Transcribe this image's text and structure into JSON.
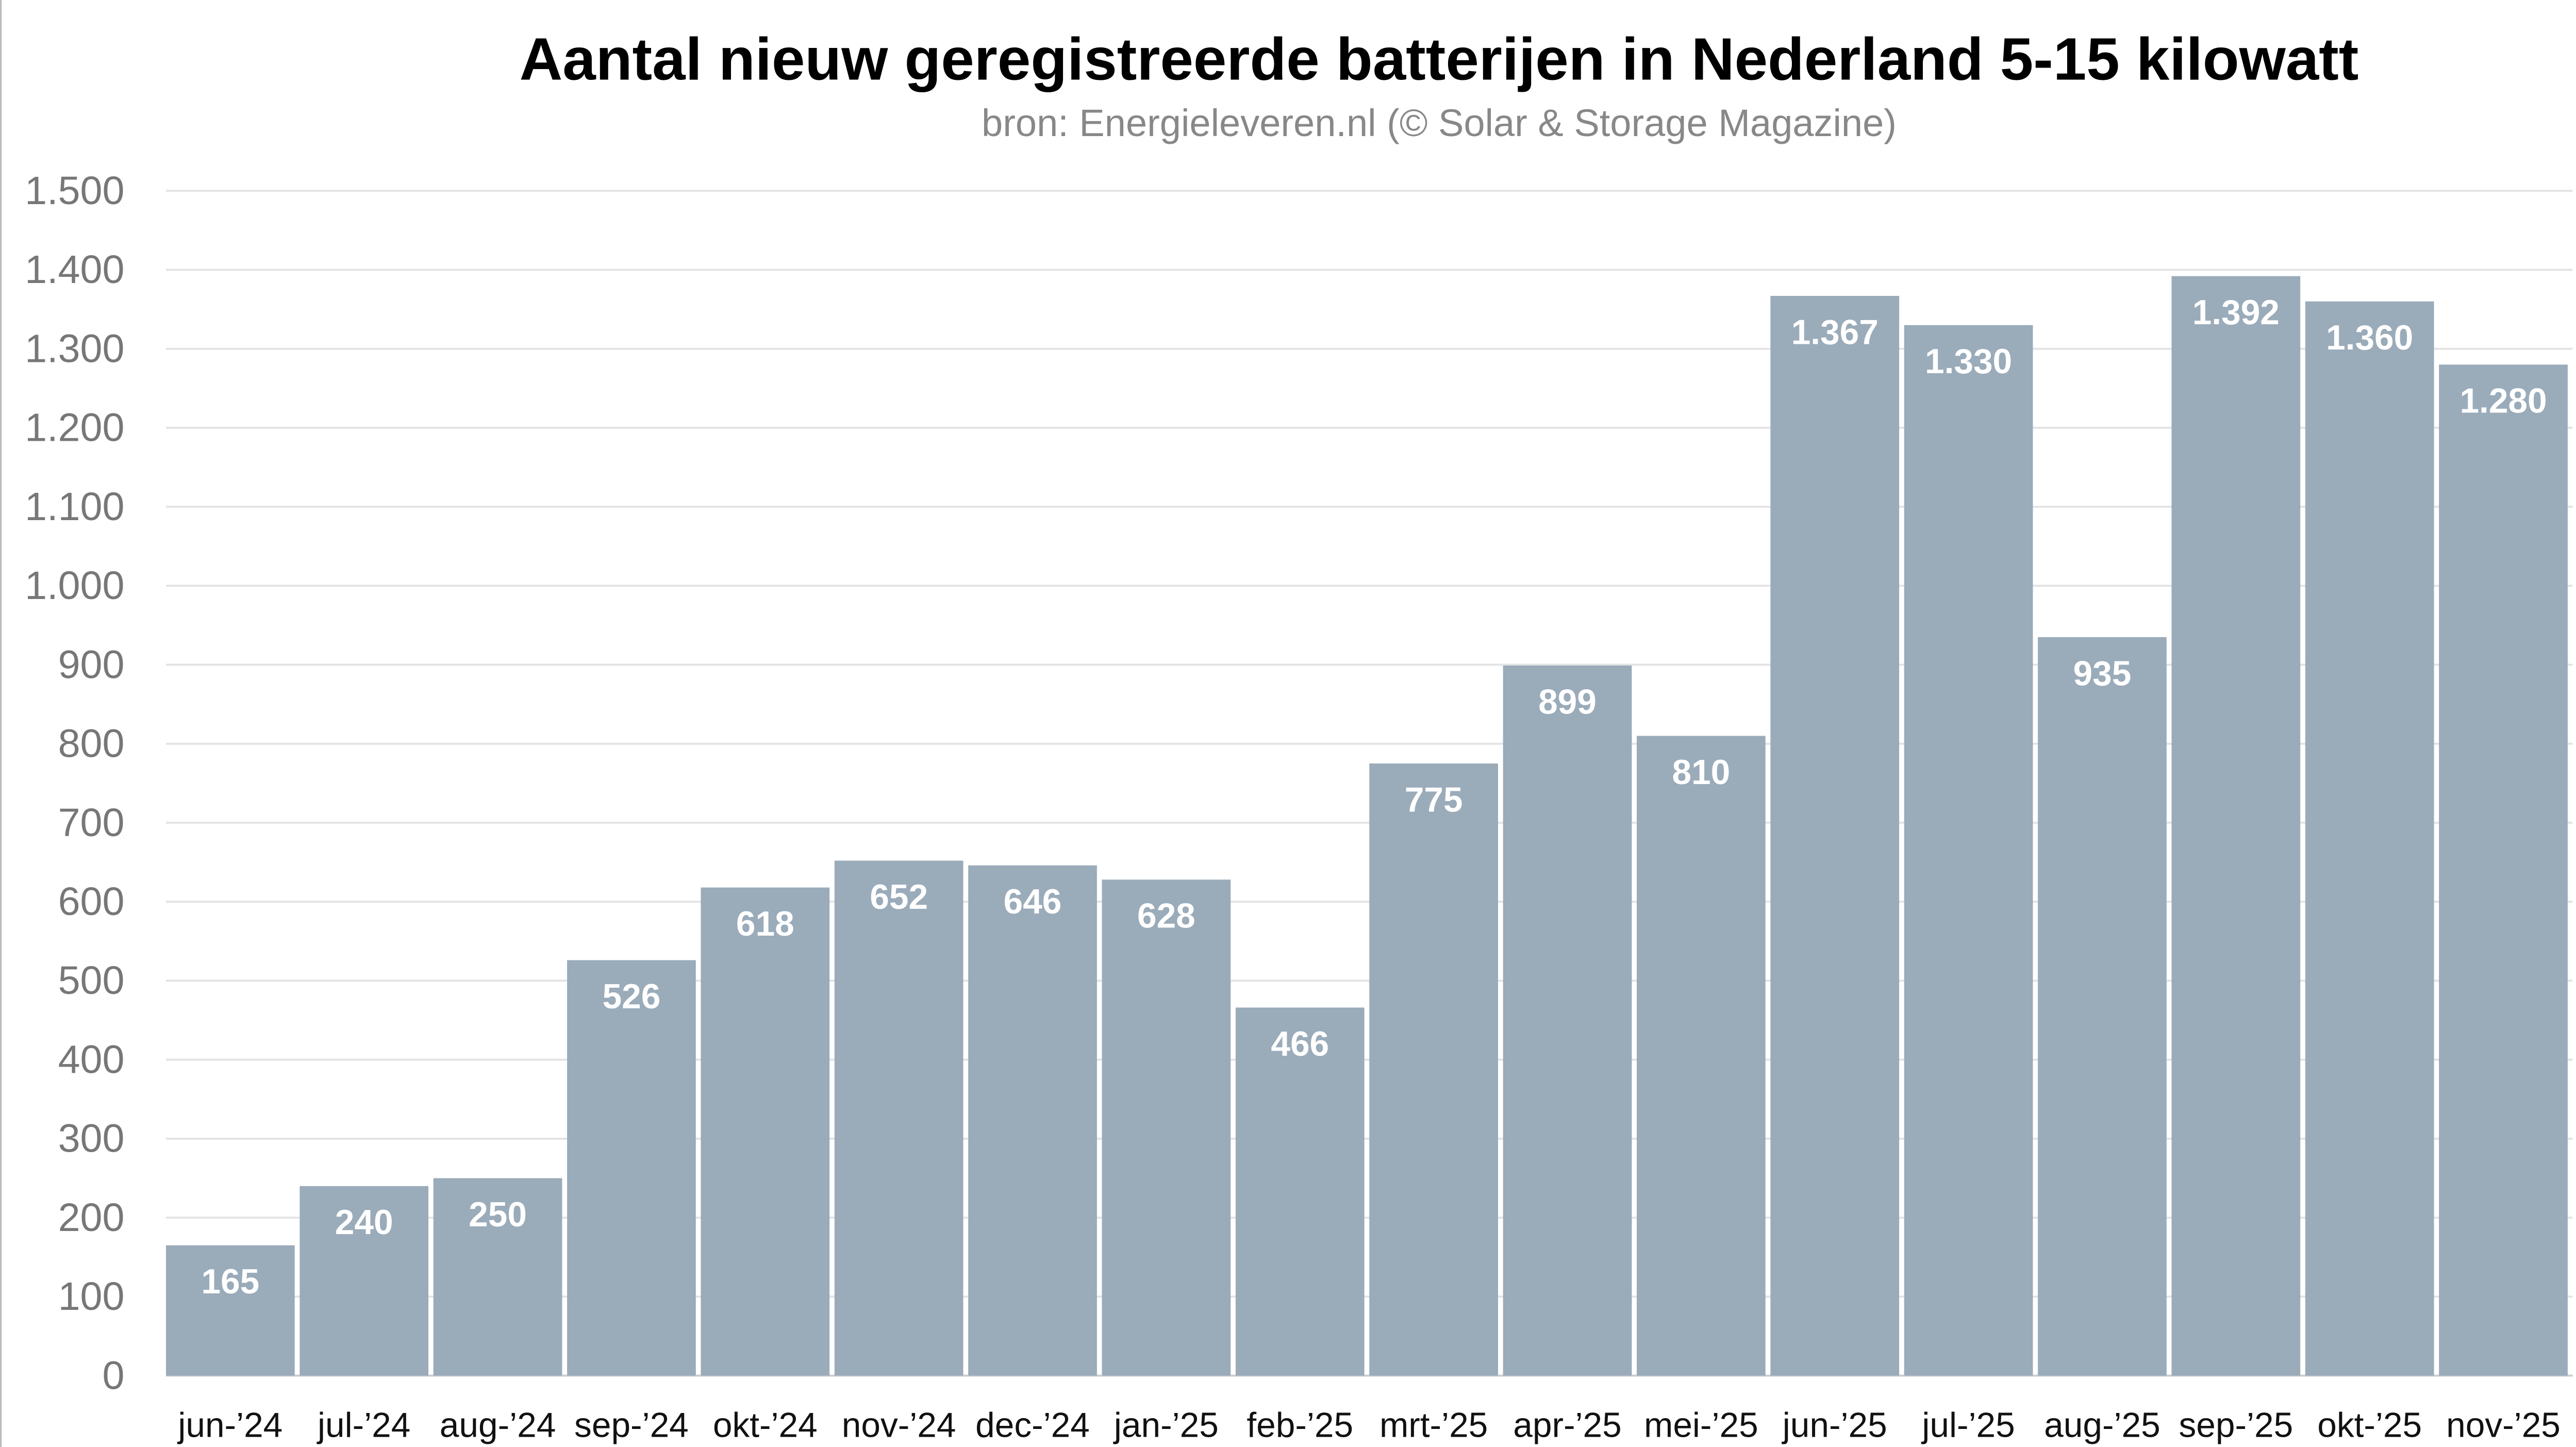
{
  "chart_data": {
    "type": "bar",
    "title": "Aantal nieuw geregistreerde batterijen in Nederland 5-15 kilowatt",
    "subtitle": "bron: Energieleveren.nl (© Solar & Storage Magazine)",
    "xlabel": "",
    "ylabel": "",
    "ylim": [
      0,
      1500
    ],
    "yticks": [
      0,
      100,
      200,
      300,
      400,
      500,
      600,
      700,
      800,
      900,
      1000,
      1100,
      1200,
      1300,
      1400,
      1500
    ],
    "ytick_labels": [
      "0",
      "100",
      "200",
      "300",
      "400",
      "500",
      "600",
      "700",
      "800",
      "900",
      "1.000",
      "1.100",
      "1.200",
      "1.300",
      "1.400",
      "1.500"
    ],
    "grid": true,
    "bar_color": "#9aabba",
    "categories": [
      "jun-’24",
      "jul-’24",
      "aug-’24",
      "sep-’24",
      "okt-’24",
      "nov-’24",
      "dec-’24",
      "jan-’25",
      "feb-’25",
      "mrt-’25",
      "apr-’25",
      "mei-’25",
      "jun-’25",
      "jul-’25",
      "aug-’25",
      "sep-’25",
      "okt-’25",
      "nov-’25"
    ],
    "values": [
      165,
      240,
      250,
      526,
      618,
      652,
      646,
      628,
      466,
      775,
      899,
      810,
      1367,
      1330,
      935,
      1392,
      1360,
      1280
    ],
    "value_labels": [
      "165",
      "240",
      "250",
      "526",
      "618",
      "652",
      "646",
      "628",
      "466",
      "775",
      "899",
      "810",
      "1.367",
      "1.330",
      "935",
      "1.392",
      "1.360",
      "1.280"
    ]
  }
}
